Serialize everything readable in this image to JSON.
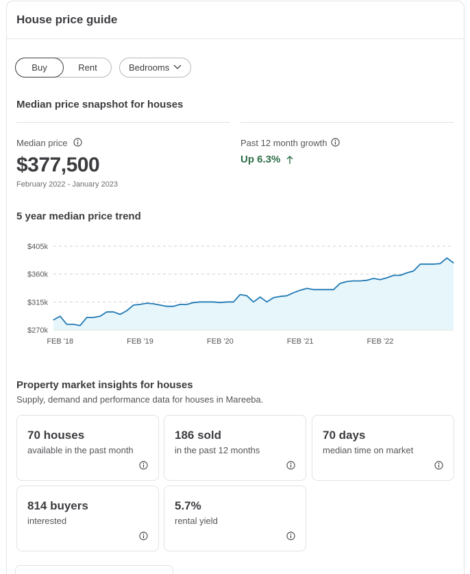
{
  "header": {
    "title": "House price guide"
  },
  "filters": {
    "buy_label": "Buy",
    "rent_label": "Rent",
    "bedrooms_label": "Bedrooms"
  },
  "snapshot": {
    "title": "Median price snapshot for houses",
    "median_label": "Median price",
    "median_value": "$377,500",
    "period": "February 2022 - January 2023",
    "growth_label": "Past 12 month growth",
    "growth_value": "Up 6.3%",
    "growth_color": "#2d6e46"
  },
  "trend": {
    "title": "5 year median price trend"
  },
  "chart_data": {
    "type": "area",
    "title": "5 year median price trend",
    "xlabel": "",
    "ylabel": "",
    "ylim": [
      270,
      405
    ],
    "y_ticks": [
      "$270k",
      "$315k",
      "$360k",
      "$405k"
    ],
    "y_tick_values": [
      270,
      315,
      360,
      405
    ],
    "x_tick_labels": [
      "FEB '18",
      "FEB '19",
      "FEB '20",
      "FEB '21",
      "FEB '22"
    ],
    "x_tick_dates": [
      "2018-02",
      "2019-02",
      "2020-02",
      "2021-02",
      "2022-02"
    ],
    "x_range": [
      "2018-01",
      "2023-01"
    ],
    "grid": true,
    "line_color": "#1f78b4",
    "fill_color": "#e6f6fb",
    "series": [
      {
        "x": [
          "2018-01",
          "2018-02",
          "2018-03",
          "2018-04",
          "2018-05",
          "2018-06",
          "2018-07",
          "2018-08",
          "2018-09",
          "2018-10",
          "2018-11",
          "2018-12",
          "2019-01",
          "2019-02",
          "2019-03",
          "2019-04",
          "2019-05",
          "2019-06",
          "2019-07",
          "2019-08",
          "2019-09",
          "2019-10",
          "2019-11",
          "2019-12",
          "2020-01",
          "2020-02",
          "2020-03",
          "2020-04",
          "2020-05",
          "2020-06",
          "2020-07",
          "2020-08",
          "2020-09",
          "2020-10",
          "2020-11",
          "2020-12",
          "2021-01",
          "2021-02",
          "2021-03",
          "2021-04",
          "2021-05",
          "2021-06",
          "2021-07",
          "2021-08",
          "2021-09",
          "2021-10",
          "2021-11",
          "2021-12",
          "2022-01",
          "2022-02",
          "2022-03",
          "2022-04",
          "2022-05",
          "2022-06",
          "2022-07",
          "2022-08",
          "2022-09",
          "2022-10",
          "2022-11",
          "2022-12",
          "2023-01"
        ],
        "y": [
          286,
          292,
          279,
          279,
          277,
          290,
          290,
          292,
          299,
          299,
          295,
          301,
          310,
          311,
          313,
          312,
          310,
          308,
          308,
          311,
          311,
          314,
          315,
          315,
          315,
          314,
          315,
          315,
          327,
          325,
          315,
          323,
          315,
          322,
          324,
          325,
          330,
          334,
          337,
          335,
          335,
          335,
          335,
          345,
          348,
          349,
          349,
          350,
          353,
          351,
          354,
          358,
          358,
          362,
          365,
          376,
          376,
          376,
          377,
          386,
          378
        ]
      }
    ]
  },
  "insights": {
    "title": "Property market insights for houses",
    "subtitle": "Supply, demand and performance data for houses in Mareeba.",
    "tiles": [
      {
        "value": "70 houses",
        "desc": "available in the past month"
      },
      {
        "value": "186 sold",
        "desc": "in the past 12 months"
      },
      {
        "value": "70 days",
        "desc": "median time on market"
      },
      {
        "value": "814 buyers",
        "desc": "interested"
      },
      {
        "value": "5.7%",
        "desc": "rental yield"
      }
    ]
  },
  "icons": {
    "info": "info-icon",
    "chevron": "chevron-down-icon",
    "arrow": "arrow-up-icon"
  }
}
